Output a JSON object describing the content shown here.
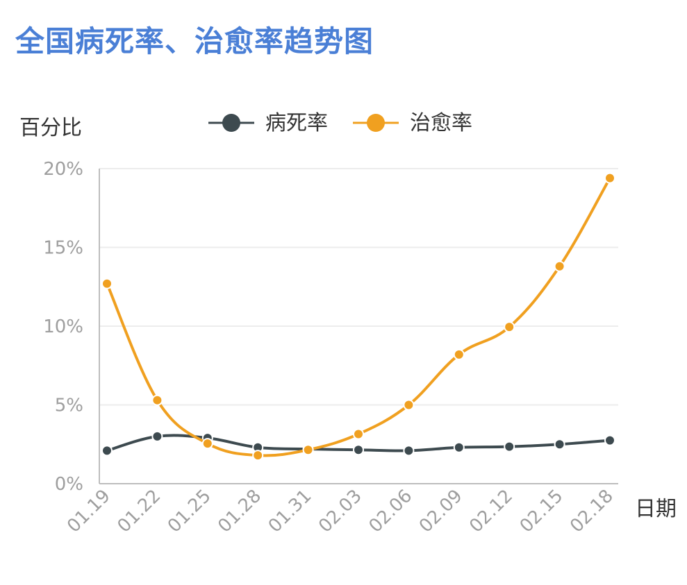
{
  "title": "全国病死率、治愈率趋势图",
  "chart_data": {
    "type": "line",
    "title": "全国病死率、治愈率趋势图",
    "ylabel": "百分比",
    "xlabel": "日期",
    "ylim": [
      0,
      20
    ],
    "yticks": [
      "0%",
      "5%",
      "10%",
      "15%",
      "20%"
    ],
    "ytick_values": [
      0,
      5,
      10,
      15,
      20
    ],
    "categories": [
      "01.19",
      "01.22",
      "01.25",
      "01.28",
      "01.31",
      "02.03",
      "02.06",
      "02.09",
      "02.12",
      "02.15",
      "02.18"
    ],
    "grid": true,
    "legend_position": "top-center",
    "series": [
      {
        "name": "病死率",
        "color": "#3d4a4f",
        "values": [
          2.1,
          3.0,
          2.9,
          2.3,
          2.2,
          2.15,
          2.1,
          2.3,
          2.35,
          2.5,
          2.75
        ]
      },
      {
        "name": "治愈率",
        "color": "#f0a020",
        "values": [
          12.7,
          5.3,
          2.55,
          1.8,
          2.15,
          3.15,
          5.0,
          8.2,
          9.95,
          13.8,
          19.4
        ]
      }
    ]
  }
}
